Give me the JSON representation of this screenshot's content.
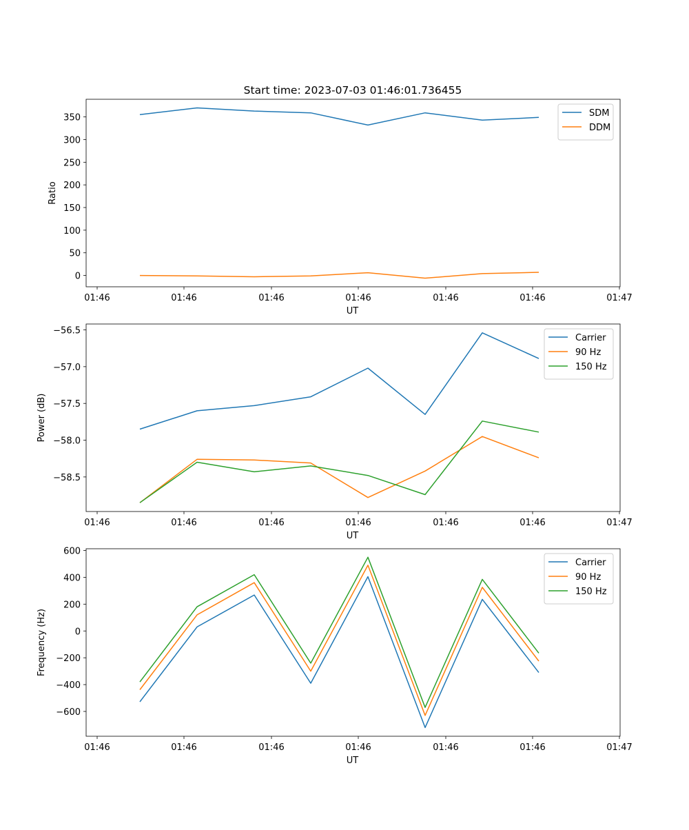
{
  "title": "Start time: 2023-07-03 01:46:01.736455",
  "colors": {
    "c0": "#1f77b4",
    "c1": "#ff7f0e",
    "c2": "#2ca02c"
  },
  "chart_data": [
    {
      "type": "line",
      "xlabel": "UT",
      "ylabel": "Ratio",
      "xticks": [
        "01:46",
        "01:46",
        "01:46",
        "01:46",
        "01:46",
        "01:46",
        "01:47"
      ],
      "yticks": [
        0,
        50,
        100,
        150,
        200,
        250,
        300,
        350
      ],
      "ylim": [
        -25,
        389
      ],
      "x_index": [
        0,
        1,
        2,
        3,
        4,
        5,
        6,
        7
      ],
      "legend": "top-right",
      "series": [
        {
          "name": "SDM",
          "values": [
            355,
            370,
            363,
            359,
            332,
            359,
            343,
            349
          ]
        },
        {
          "name": "DDM",
          "values": [
            0,
            -1,
            -3,
            -1,
            6,
            -6,
            4,
            7
          ]
        }
      ]
    },
    {
      "type": "line",
      "xlabel": "UT",
      "ylabel": "Power (dB)",
      "xticks": [
        "01:46",
        "01:46",
        "01:46",
        "01:46",
        "01:46",
        "01:46",
        "01:47"
      ],
      "yticks": [
        -58.5,
        -58.0,
        -57.5,
        -57.0,
        -56.5
      ],
      "ytick_labels": [
        "−58.5",
        "−58.0",
        "−57.5",
        "−57.0",
        "−56.5"
      ],
      "ylim": [
        -58.97,
        -56.42
      ],
      "x_index": [
        0,
        1,
        2,
        3,
        4,
        5,
        6,
        7
      ],
      "legend": "top-right",
      "series": [
        {
          "name": "Carrier",
          "values": [
            -57.85,
            -57.6,
            -57.53,
            -57.41,
            -57.02,
            -57.65,
            -56.54,
            -56.89
          ]
        },
        {
          "name": "90 Hz",
          "values": [
            -58.85,
            -58.26,
            -58.27,
            -58.31,
            -58.78,
            -58.42,
            -57.95,
            -58.24
          ]
        },
        {
          "name": "150 Hz",
          "values": [
            -58.85,
            -58.3,
            -58.43,
            -58.35,
            -58.48,
            -58.74,
            -57.74,
            -57.89
          ]
        }
      ]
    },
    {
      "type": "line",
      "xlabel": "UT",
      "ylabel": "Frequency (Hz)",
      "xticks": [
        "01:46",
        "01:46",
        "01:46",
        "01:46",
        "01:46",
        "01:46",
        "01:47"
      ],
      "yticks": [
        -600,
        -400,
        -200,
        0,
        200,
        400,
        600
      ],
      "ytick_labels": [
        "−600",
        "−400",
        "−200",
        "0",
        "200",
        "400",
        "600"
      ],
      "ylim": [
        -785,
        613
      ],
      "x_index": [
        0,
        1,
        2,
        3,
        4,
        5,
        6,
        7
      ],
      "legend": "top-right",
      "series": [
        {
          "name": "Carrier",
          "values": [
            -528,
            30,
            268,
            -390,
            405,
            -720,
            236,
            -310
          ]
        },
        {
          "name": "90 Hz",
          "values": [
            -438,
            120,
            360,
            -300,
            490,
            -630,
            325,
            -225
          ]
        },
        {
          "name": "150 Hz",
          "values": [
            -380,
            180,
            420,
            -240,
            550,
            -570,
            385,
            -165
          ]
        }
      ]
    }
  ]
}
